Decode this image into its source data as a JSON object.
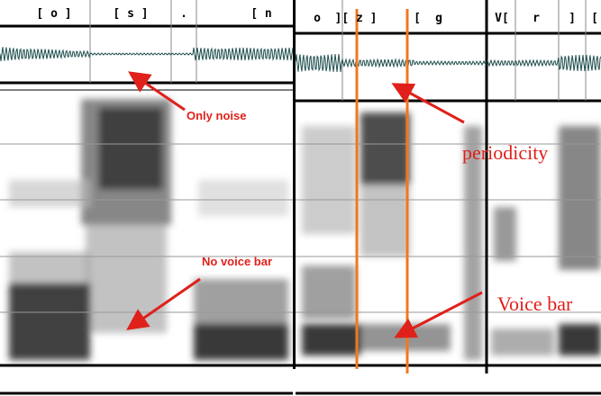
{
  "left_panel": {
    "tier_labels": [
      "[ o ]",
      "[ s ]",
      ".",
      "[ n"
    ],
    "annotations": [
      "Only noise",
      "No voice bar"
    ]
  },
  "right_panel": {
    "tier_labels": [
      "o",
      "][ z ]",
      "[",
      "g",
      "V[",
      "r",
      "]",
      "["
    ],
    "annotations": [
      "periodicity",
      "Voice bar"
    ]
  }
}
